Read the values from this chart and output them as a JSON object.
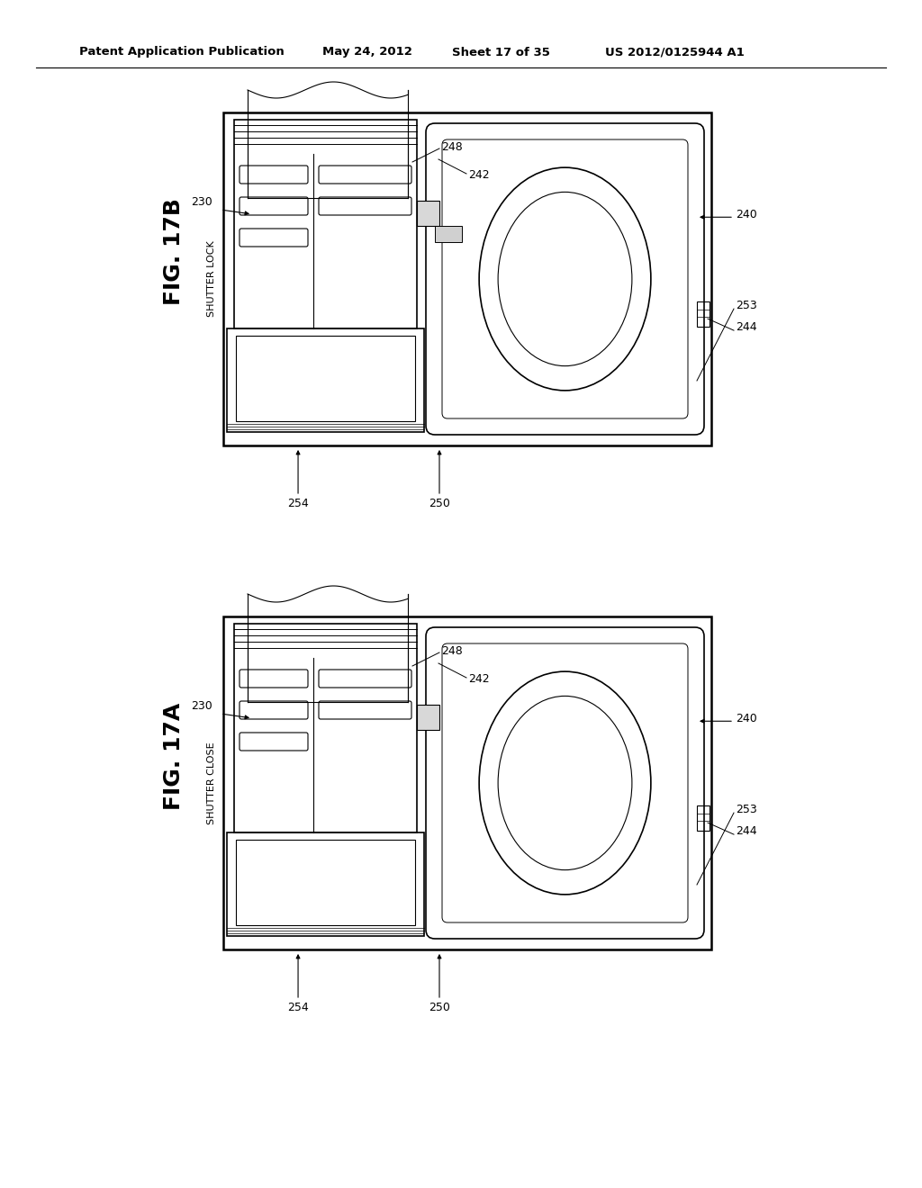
{
  "bg_color": "#ffffff",
  "line_color": "#000000",
  "header_text": "Patent Application Publication",
  "header_date": "May 24, 2012",
  "header_sheet": "Sheet 17 of 35",
  "header_patent": "US 2012/0125944 A1"
}
